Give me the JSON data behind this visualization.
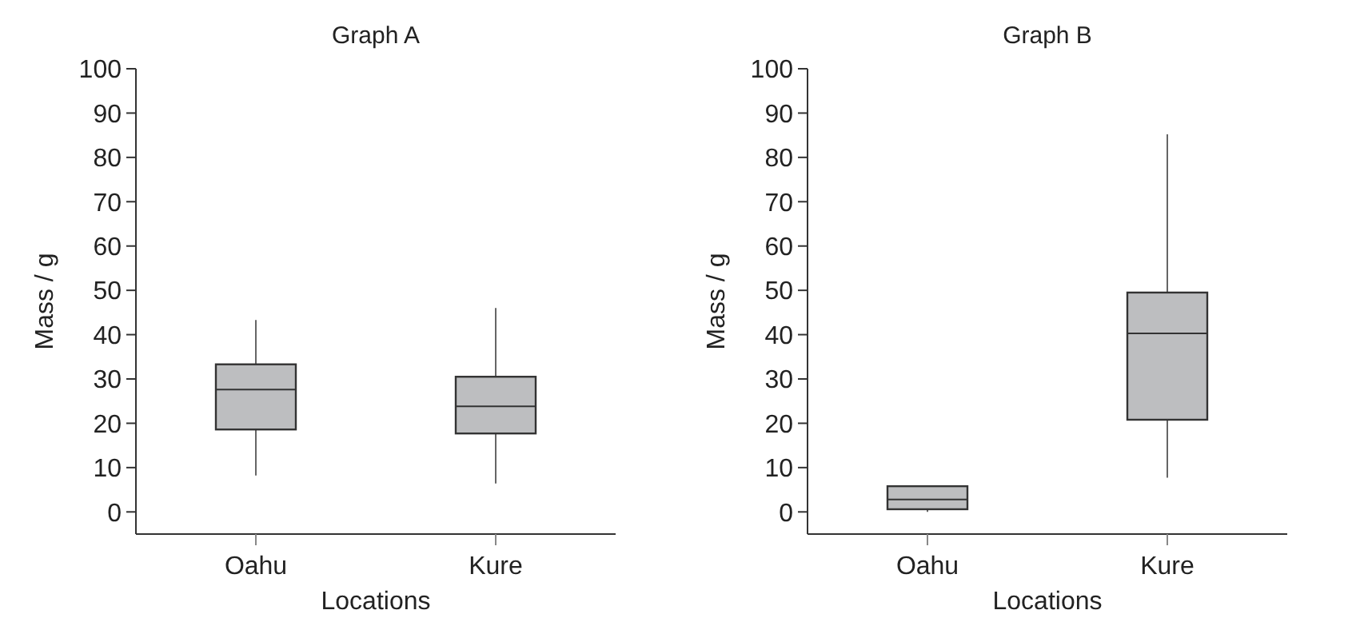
{
  "chart_data": [
    {
      "type": "box",
      "title": "Graph A",
      "xlabel": "Locations",
      "ylabel": "Mass / g",
      "categories": [
        "Oahu",
        "Kure"
      ],
      "color": "#bdbec0",
      "ylim": [
        -5,
        100
      ],
      "yticks": [
        0,
        10,
        20,
        30,
        40,
        50,
        60,
        70,
        80,
        90,
        100
      ],
      "grid": false,
      "boxes": [
        {
          "low": 8.2,
          "q1": 18.6,
          "median": 27.6,
          "q3": 33.3,
          "high": 43.3
        },
        {
          "low": 6.4,
          "q1": 17.7,
          "median": 23.8,
          "q3": 30.5,
          "high": 46
        }
      ]
    },
    {
      "type": "box",
      "title": "Graph B",
      "xlabel": "Locations",
      "ylabel": "Mass / g",
      "categories": [
        "Oahu",
        "Kure"
      ],
      "color": "#bdbec0",
      "ylim": [
        -5,
        100
      ],
      "yticks": [
        0,
        10,
        20,
        30,
        40,
        50,
        60,
        70,
        80,
        90,
        100
      ],
      "grid": false,
      "boxes": [
        {
          "low": 0,
          "q1": 0.6,
          "median": 2.8,
          "q3": 5.8,
          "high": 5.8
        },
        {
          "low": 7.7,
          "q1": 20.8,
          "median": 40.3,
          "q3": 49.5,
          "high": 85.2
        }
      ]
    }
  ]
}
